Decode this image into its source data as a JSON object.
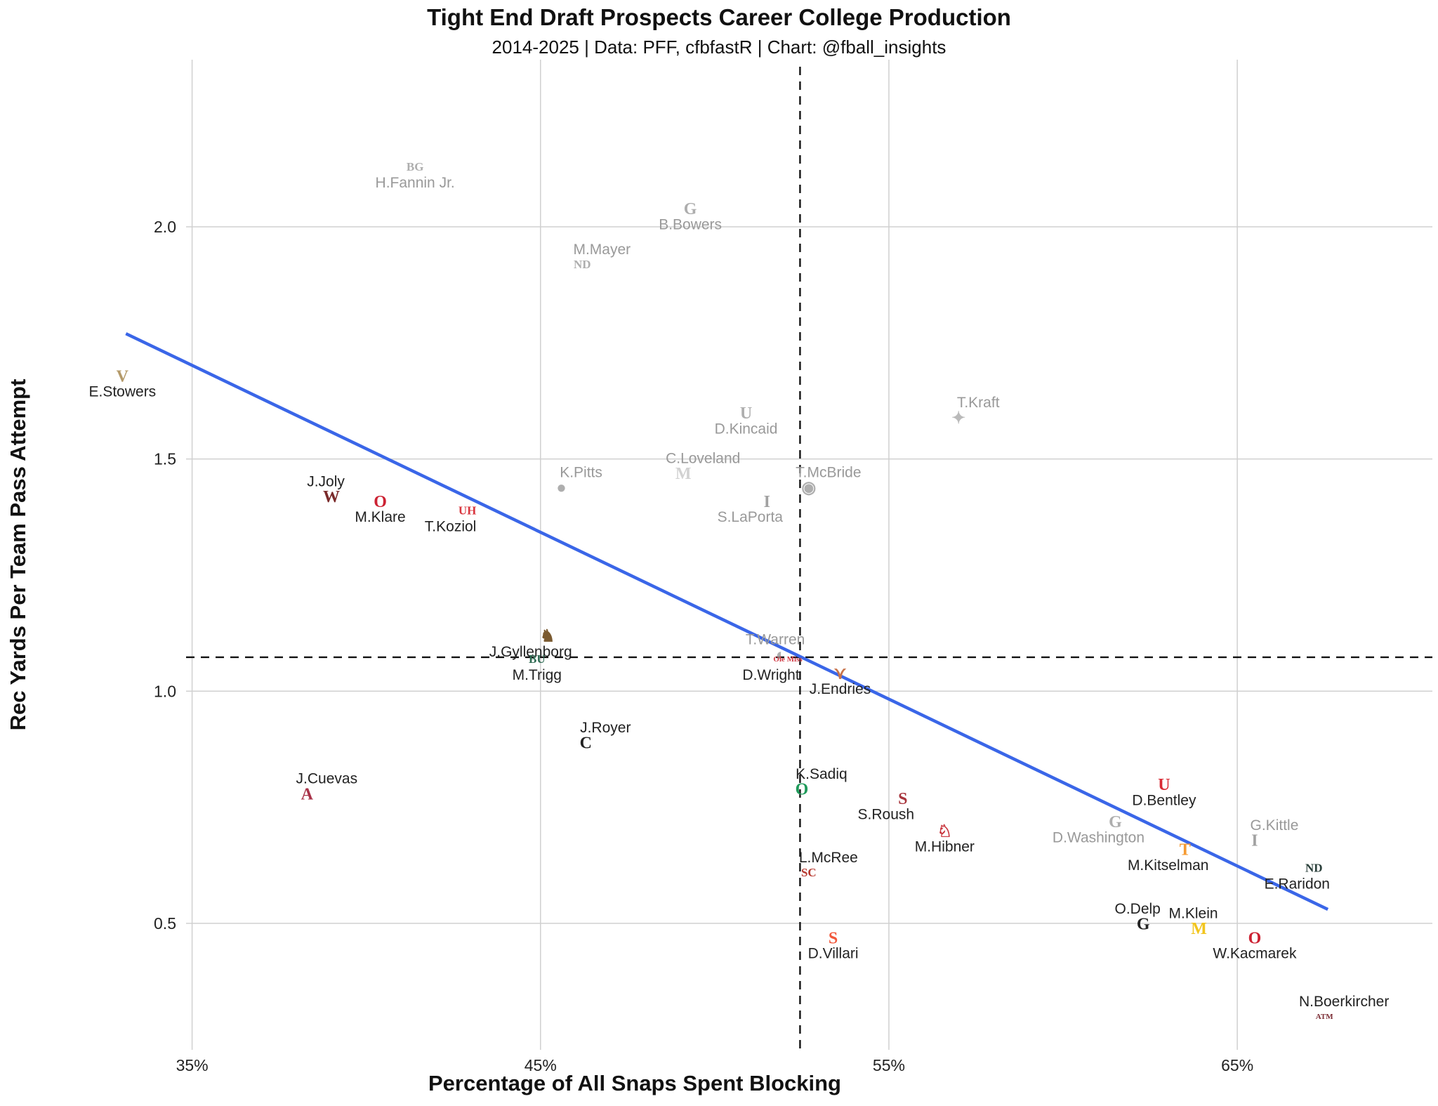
{
  "chart_data": {
    "type": "scatter",
    "title": "Tight End Draft Prospects Career College Production",
    "subtitle": "2014-2025 | Data: PFF, cfbfastR | Chart: @fball_insights",
    "xlabel": "Percentage of All Snaps Spent Blocking",
    "ylabel": "Rec Yards Per Team Pass Attempt",
    "xlim": [
      31.3,
      70.6
    ],
    "ylim": [
      0.22,
      2.36
    ],
    "x_ticks": [
      35,
      45,
      55,
      65
    ],
    "x_tick_labels": [
      "35%",
      "45%",
      "55%",
      "65%"
    ],
    "y_ticks": [
      0.5,
      1.0,
      1.5,
      2.0
    ],
    "y_tick_labels": [
      "0.5",
      "1.0",
      "1.5",
      "2.0"
    ],
    "grid": true,
    "reference_lines": {
      "x_mean": 52.45,
      "y_mean": 1.073
    },
    "trend_line": {
      "x_start": 33.1,
      "y_start": 1.77,
      "x_end": 67.6,
      "y_end": 0.53,
      "color": "#3a66e8"
    },
    "colors": {
      "prospect_label": "#222222",
      "nfl_comp_label": "#999999",
      "grid": "#d0d0d0",
      "ref_line": "#111111"
    },
    "points": [
      {
        "name": "H.Fannin Jr.",
        "team": "Bowling Green",
        "x": 41.4,
        "y": 2.13,
        "group": "comp",
        "logo_color": "#9a9a9a",
        "logo_glyph": "BG",
        "label_pos": "below"
      },
      {
        "name": "B.Bowers",
        "team": "Georgia",
        "x": 49.3,
        "y": 2.04,
        "group": "comp",
        "logo_color": "#9a9a9a",
        "logo_glyph": "G",
        "label_pos": "below"
      },
      {
        "name": "M.Mayer",
        "team": "Notre Dame",
        "x": 46.2,
        "y": 1.92,
        "group": "comp",
        "logo_color": "#9a9a9a",
        "logo_glyph": "ND",
        "label_pos": "above"
      },
      {
        "name": "E.Stowers",
        "team": "Vanderbilt",
        "x": 33.0,
        "y": 1.68,
        "group": "prospect",
        "logo_color": "#b49a6a",
        "logo_glyph": "V",
        "label_pos": "below"
      },
      {
        "name": "D.Kincaid",
        "team": "Utah",
        "x": 50.9,
        "y": 1.6,
        "group": "comp",
        "logo_color": "#9a9a9a",
        "logo_glyph": "U",
        "label_pos": "below"
      },
      {
        "name": "T.Kraft",
        "team": "South Dakota State",
        "x": 57.0,
        "y": 1.59,
        "group": "comp",
        "logo_color": "#aaaaaa",
        "logo_glyph": "✦",
        "label_pos": "above"
      },
      {
        "name": "J.Joly",
        "team": "NC State",
        "x": 39.0,
        "y": 1.42,
        "group": "prospect",
        "logo_color": "#7a2a2a",
        "logo_glyph": "W",
        "label_pos": "above-left"
      },
      {
        "name": "M.Klare",
        "team": "Ohio State",
        "x": 40.4,
        "y": 1.41,
        "group": "prospect",
        "logo_color": "#cc2233",
        "logo_glyph": "O",
        "label_pos": "below"
      },
      {
        "name": "T.Koziol",
        "team": "Houston",
        "x": 42.9,
        "y": 1.39,
        "group": "prospect",
        "logo_color": "#d9363e",
        "logo_glyph": "UH",
        "label_pos": "below-left"
      },
      {
        "name": "K.Pitts",
        "team": "Florida",
        "x": 45.6,
        "y": 1.44,
        "group": "comp",
        "logo_color": "#9a9a9a",
        "logo_glyph": "●",
        "label_pos": "above"
      },
      {
        "name": "C.Loveland",
        "team": "Michigan",
        "x": 49.1,
        "y": 1.47,
        "group": "comp",
        "logo_color": "#c8c8c8",
        "logo_glyph": "M",
        "label_pos": "above"
      },
      {
        "name": "T.McBride",
        "team": "Colorado State",
        "x": 52.7,
        "y": 1.44,
        "group": "comp",
        "logo_color": "#9a9a9a",
        "logo_glyph": "◉",
        "label_pos": "above"
      },
      {
        "name": "S.LaPorta",
        "team": "Iowa",
        "x": 51.5,
        "y": 1.41,
        "group": "comp",
        "logo_color": "#8a8a8a",
        "logo_glyph": "I",
        "label_pos": "below-left"
      },
      {
        "name": "J.Gyllenborg",
        "team": "Wyoming",
        "x": 45.2,
        "y": 1.12,
        "group": "prospect",
        "logo_color": "#7a5a30",
        "logo_glyph": "♞",
        "label_pos": "below-left"
      },
      {
        "name": "M.Trigg",
        "team": "Baylor",
        "x": 44.9,
        "y": 1.07,
        "group": "prospect",
        "logo_color": "#2e6a52",
        "logo_glyph": "BU",
        "label_pos": "below"
      },
      {
        "name": "T.Warren",
        "team": "Penn State",
        "x": 51.9,
        "y": 1.08,
        "group": "comp",
        "logo_color": "#9a9a9a",
        "logo_glyph": "◐",
        "label_pos": "above-left"
      },
      {
        "name": "D.Wright",
        "team": "Ole Miss",
        "x": 52.1,
        "y": 1.07,
        "group": "prospect",
        "logo_color": "#d13a45",
        "logo_glyph": "Ole Miss",
        "label_pos": "below-left"
      },
      {
        "name": "J.Endries",
        "team": "Texas",
        "x": 53.6,
        "y": 1.04,
        "group": "prospect",
        "logo_color": "#c8734a",
        "logo_glyph": "⋎",
        "label_pos": "below"
      },
      {
        "name": "J.Royer",
        "team": "Cincinnati",
        "x": 46.3,
        "y": 0.89,
        "group": "prospect",
        "logo_color": "#222222",
        "logo_glyph": "C",
        "label_pos": "above"
      },
      {
        "name": "J.Cuevas",
        "team": "Alabama",
        "x": 38.3,
        "y": 0.78,
        "group": "prospect",
        "logo_color": "#a83248",
        "logo_glyph": "A",
        "label_pos": "above"
      },
      {
        "name": "K.Sadiq",
        "team": "Oregon",
        "x": 52.5,
        "y": 0.79,
        "group": "prospect",
        "logo_color": "#1f9a5a",
        "logo_glyph": "O",
        "label_pos": "above"
      },
      {
        "name": "S.Roush",
        "team": "Stanford",
        "x": 55.4,
        "y": 0.77,
        "group": "prospect",
        "logo_color": "#a8343c",
        "logo_glyph": "S",
        "label_pos": "below-left"
      },
      {
        "name": "M.Hibner",
        "team": "SMU",
        "x": 56.6,
        "y": 0.7,
        "group": "prospect",
        "logo_color": "#c8323a",
        "logo_glyph": "♘",
        "label_pos": "below"
      },
      {
        "name": "L.McRee",
        "team": "USC",
        "x": 52.7,
        "y": 0.61,
        "group": "prospect",
        "logo_color": "#b83a30",
        "logo_glyph": "SC",
        "label_pos": "above"
      },
      {
        "name": "D.Villari",
        "team": "Syracuse",
        "x": 53.4,
        "y": 0.47,
        "group": "prospect",
        "logo_color": "#f2573a",
        "logo_glyph": "S",
        "label_pos": "below"
      },
      {
        "name": "D.Bentley",
        "team": "Utah",
        "x": 62.9,
        "y": 0.8,
        "group": "prospect",
        "logo_color": "#d92b35",
        "logo_glyph": "U",
        "label_pos": "below"
      },
      {
        "name": "D.Washington",
        "team": "Georgia",
        "x": 61.5,
        "y": 0.72,
        "group": "comp",
        "logo_color": "#9a9a9a",
        "logo_glyph": "G",
        "label_pos": "below-left"
      },
      {
        "name": "M.Kitselman",
        "team": "Tennessee",
        "x": 63.5,
        "y": 0.66,
        "group": "prospect",
        "logo_color": "#f59a32",
        "logo_glyph": "T",
        "label_pos": "below-left"
      },
      {
        "name": "G.Kittle",
        "team": "Iowa",
        "x": 65.5,
        "y": 0.68,
        "group": "comp",
        "logo_color": "#8a8a8a",
        "logo_glyph": "I",
        "label_pos": "above"
      },
      {
        "name": "E.Raridon",
        "team": "Notre Dame",
        "x": 67.2,
        "y": 0.62,
        "group": "prospect",
        "logo_color": "#2a3f3a",
        "logo_glyph": "ND",
        "label_pos": "below-left"
      },
      {
        "name": "O.Delp",
        "team": "Georgia",
        "x": 62.3,
        "y": 0.5,
        "group": "prospect",
        "logo_color": "#222222",
        "logo_glyph": "G",
        "label_pos": "above-left"
      },
      {
        "name": "M.Klein",
        "team": "Michigan",
        "x": 63.9,
        "y": 0.49,
        "group": "prospect",
        "logo_color": "#f2c51e",
        "logo_glyph": "M",
        "label_pos": "above-left"
      },
      {
        "name": "W.Kacmarek",
        "team": "Ohio State",
        "x": 65.5,
        "y": 0.47,
        "group": "prospect",
        "logo_color": "#cc2233",
        "logo_glyph": "O",
        "label_pos": "below"
      },
      {
        "name": "N.Boerkircher",
        "team": "Texas A&M",
        "x": 67.5,
        "y": 0.3,
        "group": "prospect",
        "logo_color": "#7a2a32",
        "logo_glyph": "ATM",
        "label_pos": "above"
      }
    ]
  }
}
